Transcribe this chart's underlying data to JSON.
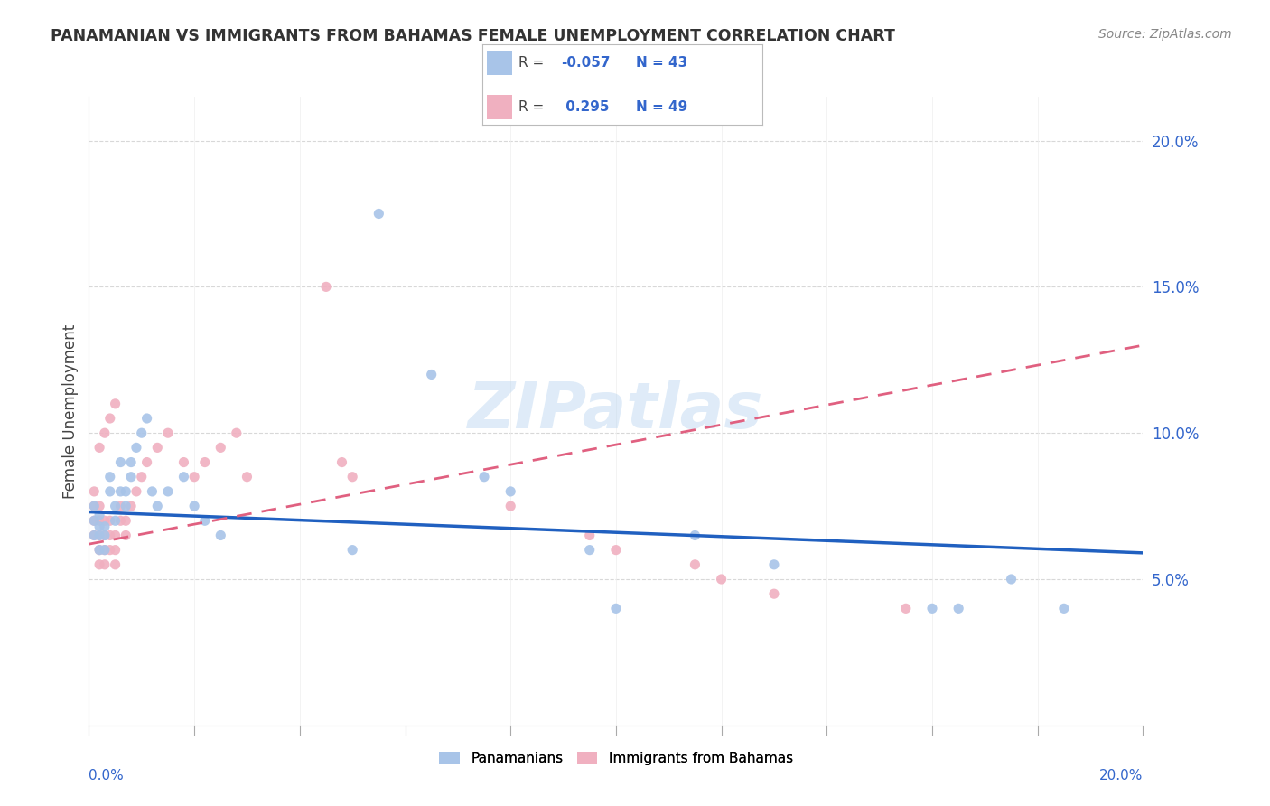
{
  "title": "PANAMANIAN VS IMMIGRANTS FROM BAHAMAS FEMALE UNEMPLOYMENT CORRELATION CHART",
  "source": "Source: ZipAtlas.com",
  "ylabel": "Female Unemployment",
  "series1_name": "Panamanians",
  "series1_color": "#a8c4e8",
  "series1_line_color": "#2060c0",
  "series2_name": "Immigrants from Bahamas",
  "series2_color": "#f0b0c0",
  "series2_line_color": "#e06080",
  "background_color": "#ffffff",
  "watermark": "ZIPatlas",
  "xlim": [
    0.0,
    0.2
  ],
  "ylim": [
    0.0,
    0.215
  ],
  "y_ticks": [
    0.05,
    0.1,
    0.15,
    0.2
  ],
  "y_tick_labels": [
    "5.0%",
    "10.0%",
    "15.0%",
    "20.0%"
  ],
  "x_tick_labels": [
    "0.0%",
    "20.0%"
  ],
  "grid_color": "#d8d8d8",
  "pan_x": [
    0.001,
    0.001,
    0.001,
    0.002,
    0.002,
    0.002,
    0.002,
    0.003,
    0.003,
    0.003,
    0.004,
    0.004,
    0.005,
    0.005,
    0.006,
    0.006,
    0.007,
    0.007,
    0.008,
    0.008,
    0.009,
    0.01,
    0.011,
    0.012,
    0.013,
    0.015,
    0.018,
    0.02,
    0.022,
    0.025,
    0.055,
    0.065,
    0.08,
    0.095,
    0.115,
    0.13,
    0.165,
    0.175,
    0.05,
    0.075,
    0.1,
    0.16,
    0.185
  ],
  "pan_y": [
    0.065,
    0.07,
    0.075,
    0.06,
    0.065,
    0.068,
    0.072,
    0.06,
    0.065,
    0.068,
    0.08,
    0.085,
    0.07,
    0.075,
    0.08,
    0.09,
    0.075,
    0.08,
    0.085,
    0.09,
    0.095,
    0.1,
    0.105,
    0.08,
    0.075,
    0.08,
    0.085,
    0.075,
    0.07,
    0.065,
    0.175,
    0.12,
    0.08,
    0.06,
    0.065,
    0.055,
    0.04,
    0.05,
    0.06,
    0.085,
    0.04,
    0.04,
    0.04
  ],
  "bah_x": [
    0.001,
    0.001,
    0.001,
    0.001,
    0.002,
    0.002,
    0.002,
    0.002,
    0.002,
    0.003,
    0.003,
    0.003,
    0.003,
    0.004,
    0.004,
    0.004,
    0.005,
    0.005,
    0.005,
    0.006,
    0.006,
    0.007,
    0.007,
    0.008,
    0.009,
    0.01,
    0.011,
    0.013,
    0.015,
    0.018,
    0.02,
    0.022,
    0.025,
    0.028,
    0.03,
    0.045,
    0.048,
    0.05,
    0.08,
    0.095,
    0.1,
    0.115,
    0.12,
    0.13,
    0.155,
    0.002,
    0.003,
    0.004,
    0.005
  ],
  "bah_y": [
    0.065,
    0.07,
    0.075,
    0.08,
    0.055,
    0.06,
    0.065,
    0.07,
    0.075,
    0.055,
    0.06,
    0.065,
    0.07,
    0.06,
    0.065,
    0.07,
    0.055,
    0.06,
    0.065,
    0.07,
    0.075,
    0.065,
    0.07,
    0.075,
    0.08,
    0.085,
    0.09,
    0.095,
    0.1,
    0.09,
    0.085,
    0.09,
    0.095,
    0.1,
    0.085,
    0.15,
    0.09,
    0.085,
    0.075,
    0.065,
    0.06,
    0.055,
    0.05,
    0.045,
    0.04,
    0.095,
    0.1,
    0.105,
    0.11
  ],
  "pan_trend": [
    0.073,
    0.059
  ],
  "bah_trend": [
    0.062,
    0.13
  ]
}
